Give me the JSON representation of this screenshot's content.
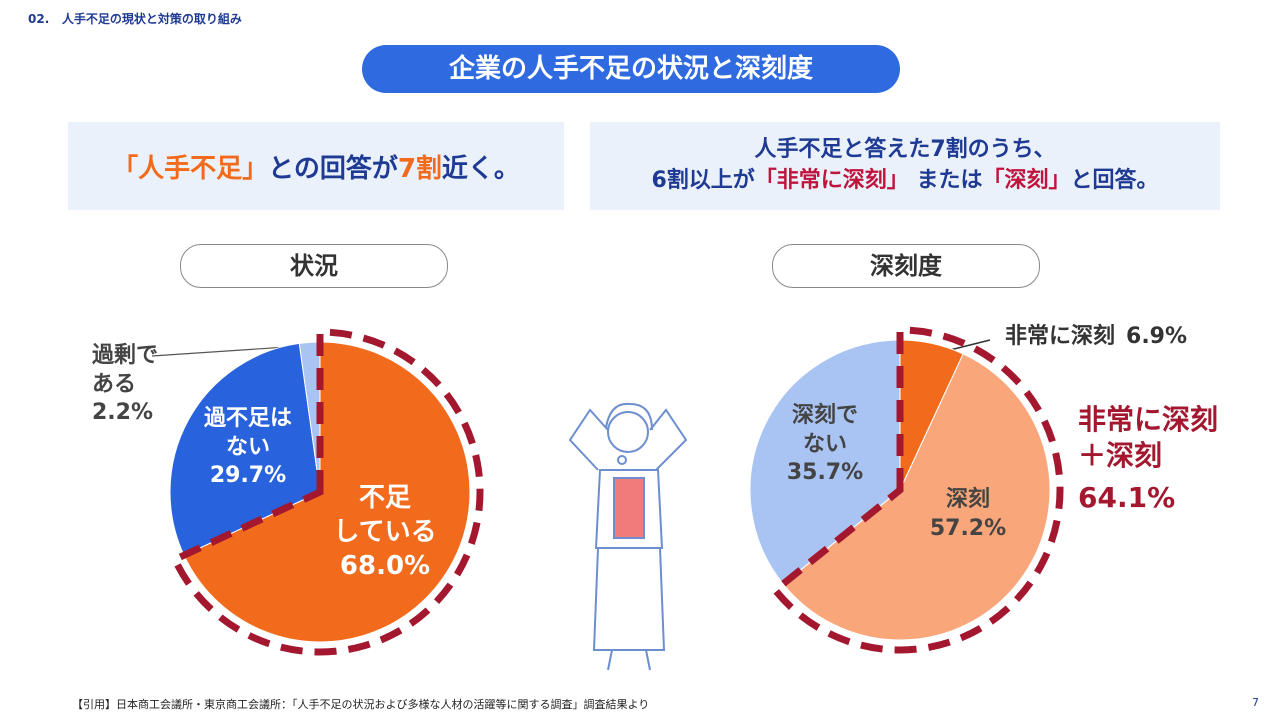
{
  "header": {
    "section": "02.",
    "title": "人手不足の現状と対策の取り組み"
  },
  "main_title": "企業の人手不足の状況と深刻度",
  "summary": [
    {
      "lines": [
        [
          {
            "text": "「人手不足」",
            "color": "#f26b1d"
          },
          {
            "text": "との回答が"
          },
          {
            "text": "7割",
            "color": "#f26b1d"
          },
          {
            "text": "近く。"
          }
        ]
      ]
    },
    {
      "lines": [
        [
          {
            "text": "人手不足と答えた7割のうち、"
          }
        ],
        [
          {
            "text": "6割以上が"
          },
          {
            "text": "「非常に深刻」",
            "color": "#c0143c"
          },
          {
            "text": " または"
          },
          {
            "text": "「深刻」",
            "color": "#c0143c"
          },
          {
            "text": "と回答。"
          }
        ]
      ]
    }
  ],
  "chart_data": [
    {
      "type": "pie",
      "title": "状況",
      "categories": [
        "不足\nしている",
        "過不足は\nない",
        "過剰で\nある"
      ],
      "values": [
        68.0,
        29.7,
        2.2
      ],
      "value_labels": [
        "68.0%",
        "29.7%",
        "2.2%"
      ],
      "colors": [
        "#f26b1d",
        "#2862dc",
        "#a9c3f3"
      ],
      "highlight": 0
    },
    {
      "type": "pie",
      "title": "深刻度",
      "categories": [
        "非常に深刻",
        "深刻",
        "深刻で\nない"
      ],
      "values": [
        6.9,
        57.2,
        35.7
      ],
      "value_labels": [
        "6.9%",
        "57.2%",
        "35.7%"
      ],
      "colors": [
        "#f26b1d",
        "#f9a77a",
        "#a9c3f3"
      ],
      "annotation": {
        "text": "非常に深刻\n＋深刻",
        "value": 64.1,
        "value_label": "64.1%"
      }
    }
  ],
  "footer": {
    "citation": "【引用】日本商工会議所・東京商工会議所：「人手不足の状況および多様な人材の活躍等に関する調査」調査結果より",
    "page": "7"
  }
}
